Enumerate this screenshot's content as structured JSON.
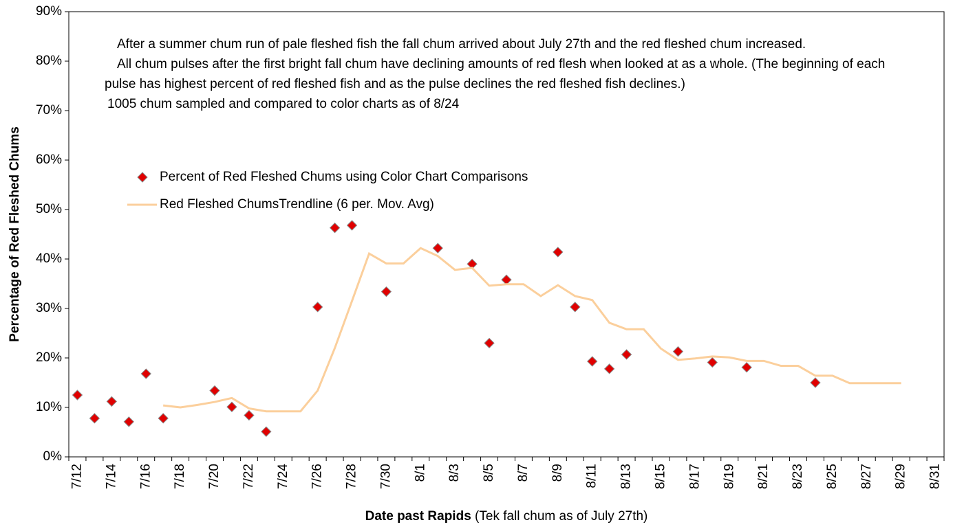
{
  "chart_data": {
    "type": "scatter",
    "ylabel": "Percentage of Red Fleshed Chums",
    "xlabel": "Date past Rapids",
    "xlabel_note": "(Tek fall chum as of July 27th)",
    "annotations": [
      "After a summer chum run of pale fleshed fish the fall chum arrived about July 27th and the red fleshed chum increased.",
      "All chum pulses after the first bright fall chum have declining amounts of red flesh when looked at as a whole. (The beginning of each pulse has highest percent of red fleshed fish and as the pulse declines the red fleshed fish declines.)",
      "1005 chum sampled and compared to color charts as of 8/24"
    ],
    "categories": [
      "7/12",
      null,
      "7/14",
      null,
      "7/16",
      null,
      "7/18",
      null,
      "7/20",
      null,
      "7/22",
      null,
      "7/24",
      null,
      "7/26",
      null,
      "7/28",
      null,
      "7/30",
      null,
      "8/1",
      null,
      "8/3",
      null,
      "8/5",
      null,
      "8/7",
      null,
      "8/9",
      null,
      "8/11",
      null,
      "8/13",
      null,
      "8/15",
      null,
      "8/17",
      null,
      "8/19",
      null,
      "8/21",
      null,
      "8/23",
      null,
      "8/25",
      null,
      "8/27",
      null,
      "8/29",
      null,
      "8/31"
    ],
    "series": [
      {
        "name": "Percent of Red Fleshed Chums using Color Chart Comparisons",
        "kind": "points",
        "color": "#e00000",
        "values": [
          12.5,
          7.8,
          11.2,
          7.1,
          16.8,
          7.8,
          null,
          null,
          13.4,
          10.1,
          8.4,
          5.1,
          null,
          null,
          30.3,
          46.3,
          46.8,
          null,
          33.4,
          null,
          null,
          42.2,
          null,
          39.0,
          23.0,
          35.8,
          null,
          null,
          41.4,
          30.3,
          19.3,
          17.8,
          20.7,
          null,
          null,
          21.3,
          null,
          19.1,
          null,
          18.1,
          null,
          null,
          null,
          15.0,
          null,
          null,
          null,
          null,
          null,
          null,
          null
        ]
      },
      {
        "name": "Red Fleshed ChumsTrendline (6 per. Mov. Avg)",
        "kind": "line",
        "color": "#fbcf9c",
        "values": [
          null,
          null,
          null,
          null,
          null,
          10.4,
          10.0,
          10.5,
          11.1,
          11.9,
          9.8,
          9.2,
          9.2,
          9.2,
          13.4,
          22.0,
          31.5,
          41.1,
          39.1,
          39.1,
          42.2,
          40.6,
          37.8,
          38.2,
          34.6,
          34.9,
          34.9,
          32.5,
          34.7,
          32.5,
          31.7,
          27.1,
          25.8,
          25.8,
          21.9,
          19.6,
          19.9,
          20.3,
          20.1,
          19.4,
          19.4,
          18.4,
          18.4,
          16.4,
          16.4,
          14.9,
          14.9,
          14.9,
          14.9,
          null,
          null
        ]
      }
    ],
    "ylim": [
      0,
      90
    ],
    "yticks": [
      {
        "value": 0,
        "label": "0%"
      },
      {
        "value": 10,
        "label": "10%"
      },
      {
        "value": 20,
        "label": "20%"
      },
      {
        "value": 30,
        "label": "30%"
      },
      {
        "value": 40,
        "label": "40%"
      },
      {
        "value": 50,
        "label": "50%"
      },
      {
        "value": 60,
        "label": "60%"
      },
      {
        "value": 70,
        "label": "70%"
      },
      {
        "value": 80,
        "label": "80%"
      },
      {
        "value": 90,
        "label": "90%"
      }
    ],
    "grid": false
  }
}
